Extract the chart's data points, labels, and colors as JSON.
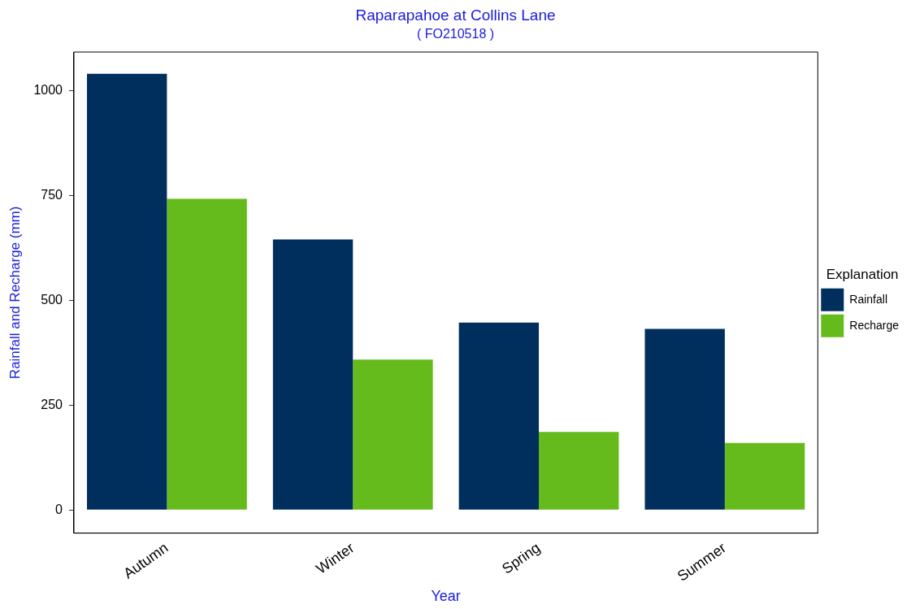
{
  "chart_data": {
    "type": "bar",
    "title": "Raparapahoe at Collins Lane",
    "subtitle": "( FO210518 )",
    "xlabel": "Year",
    "ylabel": "Rainfall and Recharge (mm)",
    "legend_title": "Explanation",
    "categories": [
      "Autumn",
      "Winter",
      "Spring",
      "Summer"
    ],
    "series": [
      {
        "name": "Rainfall",
        "color": "#002f5d",
        "values": [
          1040,
          645,
          447,
          432
        ]
      },
      {
        "name": "Recharge",
        "color": "#66bb1c",
        "values": [
          742,
          359,
          186,
          160
        ]
      }
    ],
    "ylim": [
      -55,
      1092
    ],
    "yticks": [
      0,
      250,
      500,
      750,
      1000
    ],
    "grid": false,
    "legend": "right"
  }
}
